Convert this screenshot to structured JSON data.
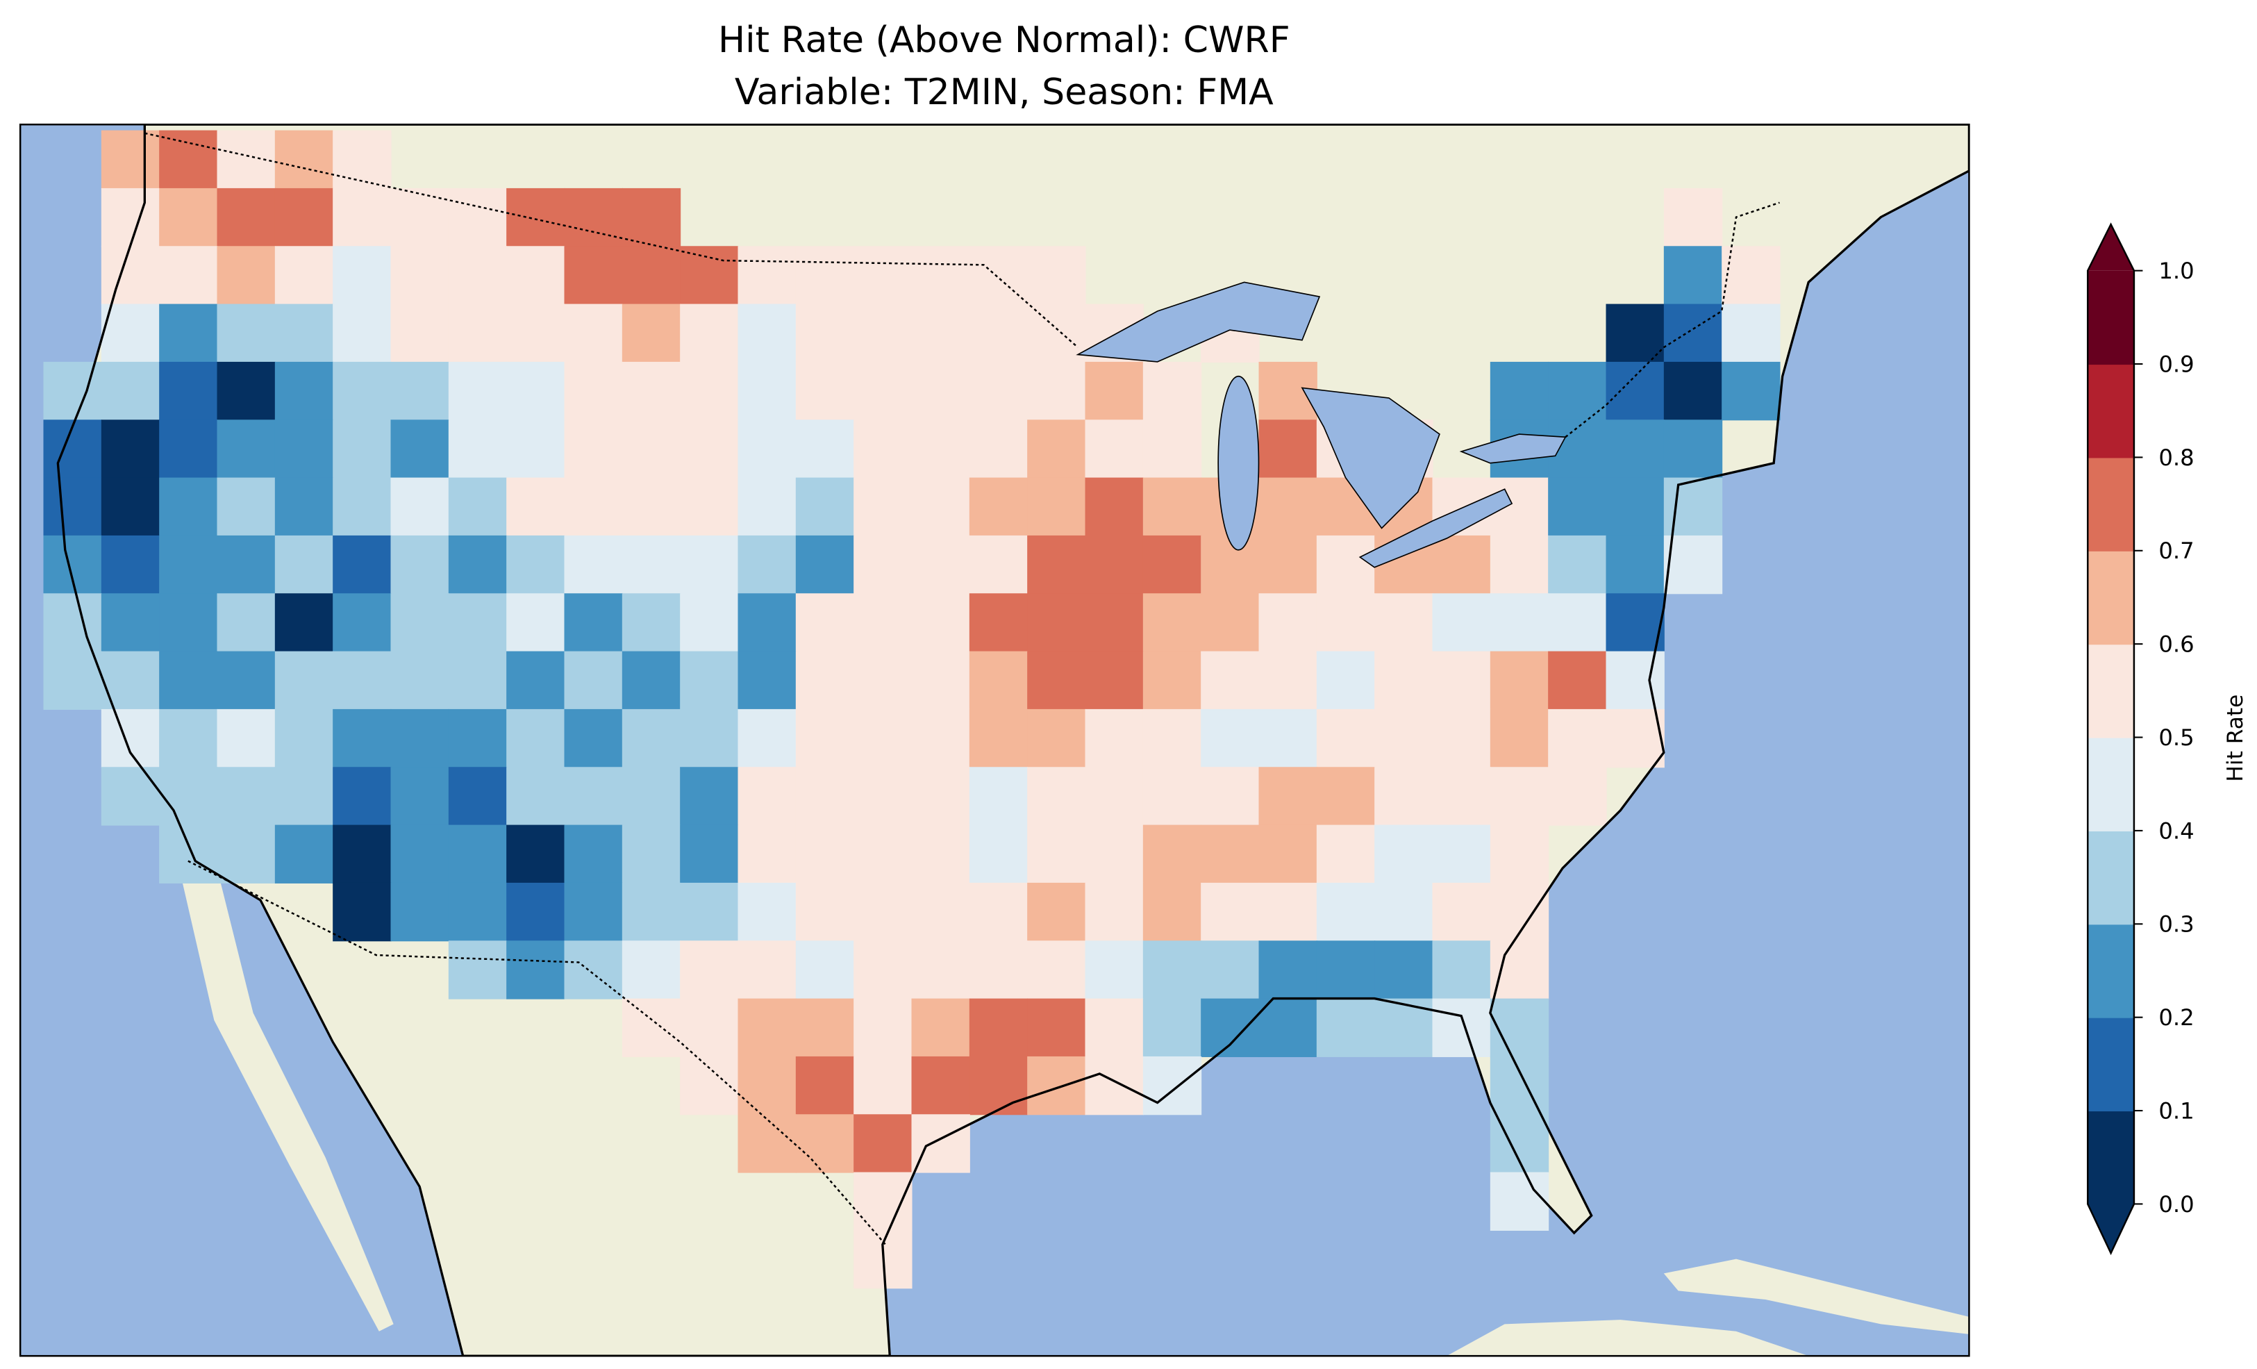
{
  "title": {
    "line1": "Hit Rate (Above Normal): CWRF",
    "line2": "Variable: T2MIN, Season: FMA"
  },
  "colors": {
    "ocean": "#97b6e1",
    "land": "#efefdb",
    "lakes": "#97b6e1"
  },
  "colorbar": {
    "label": "Hit Rate",
    "ticks": [
      "0.0",
      "0.1",
      "0.2",
      "0.3",
      "0.4",
      "0.5",
      "0.6",
      "0.7",
      "0.8",
      "0.9",
      "1.0"
    ],
    "bin_colors": [
      "#053061",
      "#2166ac",
      "#4393c3",
      "#a8d0e4",
      "#e0ecf3",
      "#fae7df",
      "#f4b799",
      "#dc6f59",
      "#b2202e",
      "#67001f"
    ],
    "extend": "both"
  },
  "chart_data": {
    "type": "heatmap",
    "title": "Hit Rate (Above Normal): CWRF / Variable: T2MIN, Season: FMA",
    "value_range": [
      0,
      1
    ],
    "bin_width": 0.1,
    "grid_note": "approximate coarse resampling of the map; each digit = hit-rate bin index (0 = 0.0-0.1 ... 9 = 0.9-1.0), '.' = no data; rows north to south, columns west to east",
    "grid_bins": [
      ".67565........................",
      ".5677555777.................5.",
      ".55654555777555555..........25",
      ".423345555654555555.5......014",
      "3310233445554555556 5.6...22102",
      "10122324455544555655.755.2222.",
      "10232343555543556676666655223.",
      "2122313234443255577766566532 4.",
      "32230233423425557776655544 41..",
      "33223333232325556776554556 74..",
      ".4343222323345556655445556 55..",
      ".3333121333255554555566 5555...",
      "..332022023255554556665445....",
      ".....022123345555656554455....",
      ".......3234554555543322235....",
      "..........5566567753223343....",
      "...........567577654.....3....",
      "............6675.........3....",
      "..............5..........4....",
      "..............5..............."
    ]
  }
}
